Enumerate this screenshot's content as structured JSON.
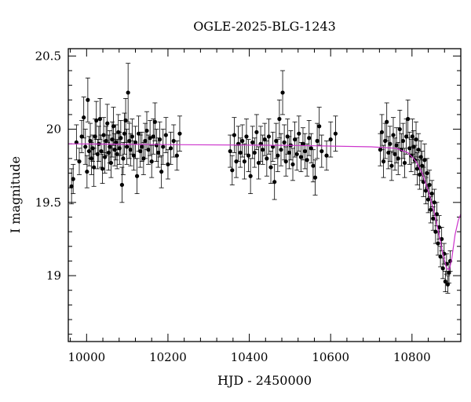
{
  "chart_data": {
    "type": "scatter",
    "title": "OGLE-2025-BLG-1243",
    "xlabel": "HJD - 2450000",
    "ylabel": "I magnitude",
    "xlim": [
      9955,
      10920
    ],
    "ylim": [
      20.55,
      18.55
    ],
    "y_inverted": true,
    "x_ticks": [
      10000,
      10200,
      10400,
      10600,
      10800
    ],
    "x_tick_labels": [
      "10000",
      "10200",
      "10400",
      "10600",
      "10800"
    ],
    "y_ticks": [
      19.0,
      19.5,
      20.0,
      20.5
    ],
    "y_tick_labels": [
      "19",
      "19.5",
      "20",
      "20.5"
    ],
    "grid": false,
    "colors": {
      "points": "#000000",
      "model": "#cc33cc",
      "frame": "#000000"
    },
    "series": [
      {
        "type": "scatter_errorbars",
        "points": [
          {
            "x": 9963,
            "y": 19.61,
            "e": 0.12
          },
          {
            "x": 9967,
            "y": 19.66,
            "e": 0.1
          },
          {
            "x": 9975,
            "y": 19.91,
            "e": 0.12
          },
          {
            "x": 9982,
            "y": 19.78,
            "e": 0.09
          },
          {
            "x": 9988,
            "y": 19.95,
            "e": 0.11
          },
          {
            "x": 9993,
            "y": 20.08,
            "e": 0.14
          },
          {
            "x": 9997,
            "y": 19.88,
            "e": 0.12
          },
          {
            "x": 10001,
            "y": 19.71,
            "e": 0.11
          },
          {
            "x": 10003,
            "y": 20.2,
            "e": 0.15
          },
          {
            "x": 10006,
            "y": 19.85,
            "e": 0.1
          },
          {
            "x": 10009,
            "y": 19.92,
            "e": 0.12
          },
          {
            "x": 10012,
            "y": 19.8,
            "e": 0.11
          },
          {
            "x": 10015,
            "y": 19.87,
            "e": 0.09
          },
          {
            "x": 10018,
            "y": 19.74,
            "e": 0.13
          },
          {
            "x": 10021,
            "y": 19.95,
            "e": 0.12
          },
          {
            "x": 10024,
            "y": 20.06,
            "e": 0.13
          },
          {
            "x": 10027,
            "y": 19.83,
            "e": 0.1
          },
          {
            "x": 10030,
            "y": 19.9,
            "e": 0.12
          },
          {
            "x": 10033,
            "y": 20.07,
            "e": 0.14
          },
          {
            "x": 10036,
            "y": 19.85,
            "e": 0.11
          },
          {
            "x": 10039,
            "y": 19.73,
            "e": 0.1
          },
          {
            "x": 10042,
            "y": 19.96,
            "e": 0.12
          },
          {
            "x": 10045,
            "y": 19.81,
            "e": 0.11
          },
          {
            "x": 10048,
            "y": 19.92,
            "e": 0.1
          },
          {
            "x": 10051,
            "y": 20.04,
            "e": 0.13
          },
          {
            "x": 10054,
            "y": 19.84,
            "e": 0.12
          },
          {
            "x": 10057,
            "y": 19.88,
            "e": 0.11
          },
          {
            "x": 10060,
            "y": 19.77,
            "e": 0.1
          },
          {
            "x": 10063,
            "y": 19.93,
            "e": 0.12
          },
          {
            "x": 10066,
            "y": 20.02,
            "e": 0.13
          },
          {
            "x": 10069,
            "y": 19.86,
            "e": 0.11
          },
          {
            "x": 10072,
            "y": 19.91,
            "e": 0.12
          },
          {
            "x": 10075,
            "y": 19.83,
            "e": 0.1
          },
          {
            "x": 10078,
            "y": 19.98,
            "e": 0.12
          },
          {
            "x": 10081,
            "y": 19.87,
            "e": 0.11
          },
          {
            "x": 10084,
            "y": 19.94,
            "e": 0.12
          },
          {
            "x": 10087,
            "y": 19.62,
            "e": 0.12
          },
          {
            "x": 10090,
            "y": 19.8,
            "e": 0.11
          },
          {
            "x": 10093,
            "y": 19.97,
            "e": 0.14
          },
          {
            "x": 10096,
            "y": 20.06,
            "e": 0.15
          },
          {
            "x": 10099,
            "y": 19.88,
            "e": 0.12
          },
          {
            "x": 10102,
            "y": 20.25,
            "e": 0.2
          },
          {
            "x": 10105,
            "y": 19.92,
            "e": 0.12
          },
          {
            "x": 10108,
            "y": 19.86,
            "e": 0.11
          },
          {
            "x": 10112,
            "y": 19.95,
            "e": 0.12
          },
          {
            "x": 10116,
            "y": 19.82,
            "e": 0.1
          },
          {
            "x": 10120,
            "y": 19.91,
            "e": 0.11
          },
          {
            "x": 10124,
            "y": 19.68,
            "e": 0.12
          },
          {
            "x": 10128,
            "y": 19.97,
            "e": 0.12
          },
          {
            "x": 10132,
            "y": 19.85,
            "e": 0.11
          },
          {
            "x": 10136,
            "y": 19.88,
            "e": 0.1
          },
          {
            "x": 10140,
            "y": 19.8,
            "e": 0.11
          },
          {
            "x": 10144,
            "y": 19.92,
            "e": 0.12
          },
          {
            "x": 10148,
            "y": 19.99,
            "e": 0.13
          },
          {
            "x": 10152,
            "y": 19.86,
            "e": 0.1
          },
          {
            "x": 10156,
            "y": 19.94,
            "e": 0.12
          },
          {
            "x": 10160,
            "y": 19.78,
            "e": 0.11
          },
          {
            "x": 10164,
            "y": 19.95,
            "e": 0.12
          },
          {
            "x": 10168,
            "y": 20.05,
            "e": 0.13
          },
          {
            "x": 10172,
            "y": 19.89,
            "e": 0.11
          },
          {
            "x": 10176,
            "y": 19.84,
            "e": 0.1
          },
          {
            "x": 10180,
            "y": 19.93,
            "e": 0.12
          },
          {
            "x": 10184,
            "y": 19.71,
            "e": 0.11
          },
          {
            "x": 10188,
            "y": 19.88,
            "e": 0.12
          },
          {
            "x": 10195,
            "y": 19.96,
            "e": 0.12
          },
          {
            "x": 10200,
            "y": 19.76,
            "e": 0.1
          },
          {
            "x": 10207,
            "y": 19.87,
            "e": 0.11
          },
          {
            "x": 10214,
            "y": 19.92,
            "e": 0.11
          },
          {
            "x": 10222,
            "y": 19.82,
            "e": 0.1
          },
          {
            "x": 10229,
            "y": 19.97,
            "e": 0.12
          },
          {
            "x": 10353,
            "y": 19.85,
            "e": 0.11
          },
          {
            "x": 10358,
            "y": 19.72,
            "e": 0.1
          },
          {
            "x": 10363,
            "y": 19.96,
            "e": 0.12
          },
          {
            "x": 10368,
            "y": 19.78,
            "e": 0.11
          },
          {
            "x": 10373,
            "y": 19.9,
            "e": 0.12
          },
          {
            "x": 10378,
            "y": 19.84,
            "e": 0.1
          },
          {
            "x": 10383,
            "y": 19.92,
            "e": 0.11
          },
          {
            "x": 10388,
            "y": 19.78,
            "e": 0.12
          },
          {
            "x": 10393,
            "y": 19.95,
            "e": 0.12
          },
          {
            "x": 10398,
            "y": 19.82,
            "e": 0.11
          },
          {
            "x": 10403,
            "y": 19.68,
            "e": 0.12
          },
          {
            "x": 10408,
            "y": 19.91,
            "e": 0.11
          },
          {
            "x": 10413,
            "y": 19.84,
            "e": 0.1
          },
          {
            "x": 10418,
            "y": 19.98,
            "e": 0.12
          },
          {
            "x": 10423,
            "y": 19.77,
            "e": 0.11
          },
          {
            "x": 10428,
            "y": 19.9,
            "e": 0.12
          },
          {
            "x": 10433,
            "y": 19.86,
            "e": 0.1
          },
          {
            "x": 10438,
            "y": 19.93,
            "e": 0.11
          },
          {
            "x": 10443,
            "y": 19.8,
            "e": 0.12
          },
          {
            "x": 10448,
            "y": 19.95,
            "e": 0.12
          },
          {
            "x": 10453,
            "y": 19.74,
            "e": 0.11
          },
          {
            "x": 10458,
            "y": 19.88,
            "e": 0.1
          },
          {
            "x": 10462,
            "y": 19.64,
            "e": 0.12
          },
          {
            "x": 10466,
            "y": 19.92,
            "e": 0.12
          },
          {
            "x": 10470,
            "y": 19.82,
            "e": 0.11
          },
          {
            "x": 10474,
            "y": 20.07,
            "e": 0.13
          },
          {
            "x": 10478,
            "y": 19.86,
            "e": 0.11
          },
          {
            "x": 10482,
            "y": 20.25,
            "e": 0.15
          },
          {
            "x": 10486,
            "y": 19.91,
            "e": 0.12
          },
          {
            "x": 10490,
            "y": 19.78,
            "e": 0.1
          },
          {
            "x": 10494,
            "y": 19.95,
            "e": 0.12
          },
          {
            "x": 10498,
            "y": 19.84,
            "e": 0.11
          },
          {
            "x": 10502,
            "y": 19.89,
            "e": 0.1
          },
          {
            "x": 10507,
            "y": 19.76,
            "e": 0.11
          },
          {
            "x": 10512,
            "y": 19.93,
            "e": 0.12
          },
          {
            "x": 10517,
            "y": 19.83,
            "e": 0.11
          },
          {
            "x": 10522,
            "y": 19.97,
            "e": 0.12
          },
          {
            "x": 10527,
            "y": 19.81,
            "e": 0.1
          },
          {
            "x": 10532,
            "y": 19.9,
            "e": 0.11
          },
          {
            "x": 10537,
            "y": 19.85,
            "e": 0.12
          },
          {
            "x": 10542,
            "y": 19.79,
            "e": 0.11
          },
          {
            "x": 10547,
            "y": 19.94,
            "e": 0.12
          },
          {
            "x": 10552,
            "y": 19.87,
            "e": 0.1
          },
          {
            "x": 10557,
            "y": 19.75,
            "e": 0.11
          },
          {
            "x": 10562,
            "y": 19.67,
            "e": 0.12
          },
          {
            "x": 10567,
            "y": 19.92,
            "e": 0.12
          },
          {
            "x": 10572,
            "y": 20.02,
            "e": 0.13
          },
          {
            "x": 10578,
            "y": 19.85,
            "e": 0.11
          },
          {
            "x": 10590,
            "y": 19.82,
            "e": 0.1
          },
          {
            "x": 10600,
            "y": 19.93,
            "e": 0.12
          },
          {
            "x": 10612,
            "y": 19.97,
            "e": 0.12
          },
          {
            "x": 10722,
            "y": 19.86,
            "e": 0.11
          },
          {
            "x": 10726,
            "y": 19.98,
            "e": 0.12
          },
          {
            "x": 10730,
            "y": 19.78,
            "e": 0.11
          },
          {
            "x": 10734,
            "y": 19.92,
            "e": 0.12
          },
          {
            "x": 10738,
            "y": 20.05,
            "e": 0.13
          },
          {
            "x": 10742,
            "y": 19.84,
            "e": 0.11
          },
          {
            "x": 10746,
            "y": 19.9,
            "e": 0.12
          },
          {
            "x": 10750,
            "y": 19.75,
            "e": 0.1
          },
          {
            "x": 10754,
            "y": 19.96,
            "e": 0.12
          },
          {
            "x": 10758,
            "y": 19.83,
            "e": 0.11
          },
          {
            "x": 10762,
            "y": 19.89,
            "e": 0.12
          },
          {
            "x": 10766,
            "y": 19.8,
            "e": 0.11
          },
          {
            "x": 10770,
            "y": 20.0,
            "e": 0.13
          },
          {
            "x": 10774,
            "y": 19.86,
            "e": 0.11
          },
          {
            "x": 10778,
            "y": 19.92,
            "e": 0.12
          },
          {
            "x": 10782,
            "y": 19.77,
            "e": 0.1
          },
          {
            "x": 10786,
            "y": 19.95,
            "e": 0.12
          },
          {
            "x": 10790,
            "y": 20.07,
            "e": 0.13
          },
          {
            "x": 10794,
            "y": 19.87,
            "e": 0.11
          },
          {
            "x": 10798,
            "y": 19.82,
            "e": 0.11
          },
          {
            "x": 10801,
            "y": 19.95,
            "e": 0.12
          },
          {
            "x": 10804,
            "y": 19.88,
            "e": 0.11
          },
          {
            "x": 10807,
            "y": 19.79,
            "e": 0.1
          },
          {
            "x": 10810,
            "y": 19.93,
            "e": 0.12
          },
          {
            "x": 10813,
            "y": 19.73,
            "e": 0.11
          },
          {
            "x": 10816,
            "y": 19.86,
            "e": 0.11
          },
          {
            "x": 10819,
            "y": 19.69,
            "e": 0.1
          },
          {
            "x": 10822,
            "y": 19.81,
            "e": 0.11
          },
          {
            "x": 10825,
            "y": 19.75,
            "e": 0.1
          },
          {
            "x": 10828,
            "y": 19.64,
            "e": 0.1
          },
          {
            "x": 10831,
            "y": 19.79,
            "e": 0.11
          },
          {
            "x": 10834,
            "y": 19.58,
            "e": 0.09
          },
          {
            "x": 10837,
            "y": 19.7,
            "e": 0.1
          },
          {
            "x": 10840,
            "y": 19.52,
            "e": 0.09
          },
          {
            "x": 10843,
            "y": 19.62,
            "e": 0.1
          },
          {
            "x": 10846,
            "y": 19.45,
            "e": 0.09
          },
          {
            "x": 10849,
            "y": 19.56,
            "e": 0.09
          },
          {
            "x": 10852,
            "y": 19.39,
            "e": 0.08
          },
          {
            "x": 10855,
            "y": 19.5,
            "e": 0.09
          },
          {
            "x": 10858,
            "y": 19.3,
            "e": 0.08
          },
          {
            "x": 10861,
            "y": 19.42,
            "e": 0.08
          },
          {
            "x": 10864,
            "y": 19.22,
            "e": 0.08
          },
          {
            "x": 10867,
            "y": 19.33,
            "e": 0.08
          },
          {
            "x": 10870,
            "y": 19.13,
            "e": 0.07
          },
          {
            "x": 10873,
            "y": 19.25,
            "e": 0.08
          },
          {
            "x": 10876,
            "y": 19.05,
            "e": 0.07
          },
          {
            "x": 10879,
            "y": 19.15,
            "e": 0.07
          },
          {
            "x": 10882,
            "y": 18.96,
            "e": 0.07
          },
          {
            "x": 10885,
            "y": 19.08,
            "e": 0.07
          },
          {
            "x": 10888,
            "y": 18.94,
            "e": 0.06
          },
          {
            "x": 10891,
            "y": 19.02,
            "e": 0.07
          },
          {
            "x": 10894,
            "y": 19.1,
            "e": 0.07
          }
        ]
      },
      {
        "type": "line",
        "model": true,
        "points": [
          [
            9955,
            19.9
          ],
          [
            10200,
            19.895
          ],
          [
            10500,
            19.89
          ],
          [
            10700,
            19.88
          ],
          [
            10760,
            19.87
          ],
          [
            10790,
            19.84
          ],
          [
            10810,
            19.78
          ],
          [
            10825,
            19.7
          ],
          [
            10840,
            19.58
          ],
          [
            10855,
            19.43
          ],
          [
            10865,
            19.3
          ],
          [
            10875,
            19.16
          ],
          [
            10885,
            19.05
          ],
          [
            10892,
            19.04
          ],
          [
            10898,
            19.12
          ],
          [
            10906,
            19.28
          ],
          [
            10914,
            19.38
          ],
          [
            10920,
            19.42
          ]
        ]
      }
    ]
  }
}
